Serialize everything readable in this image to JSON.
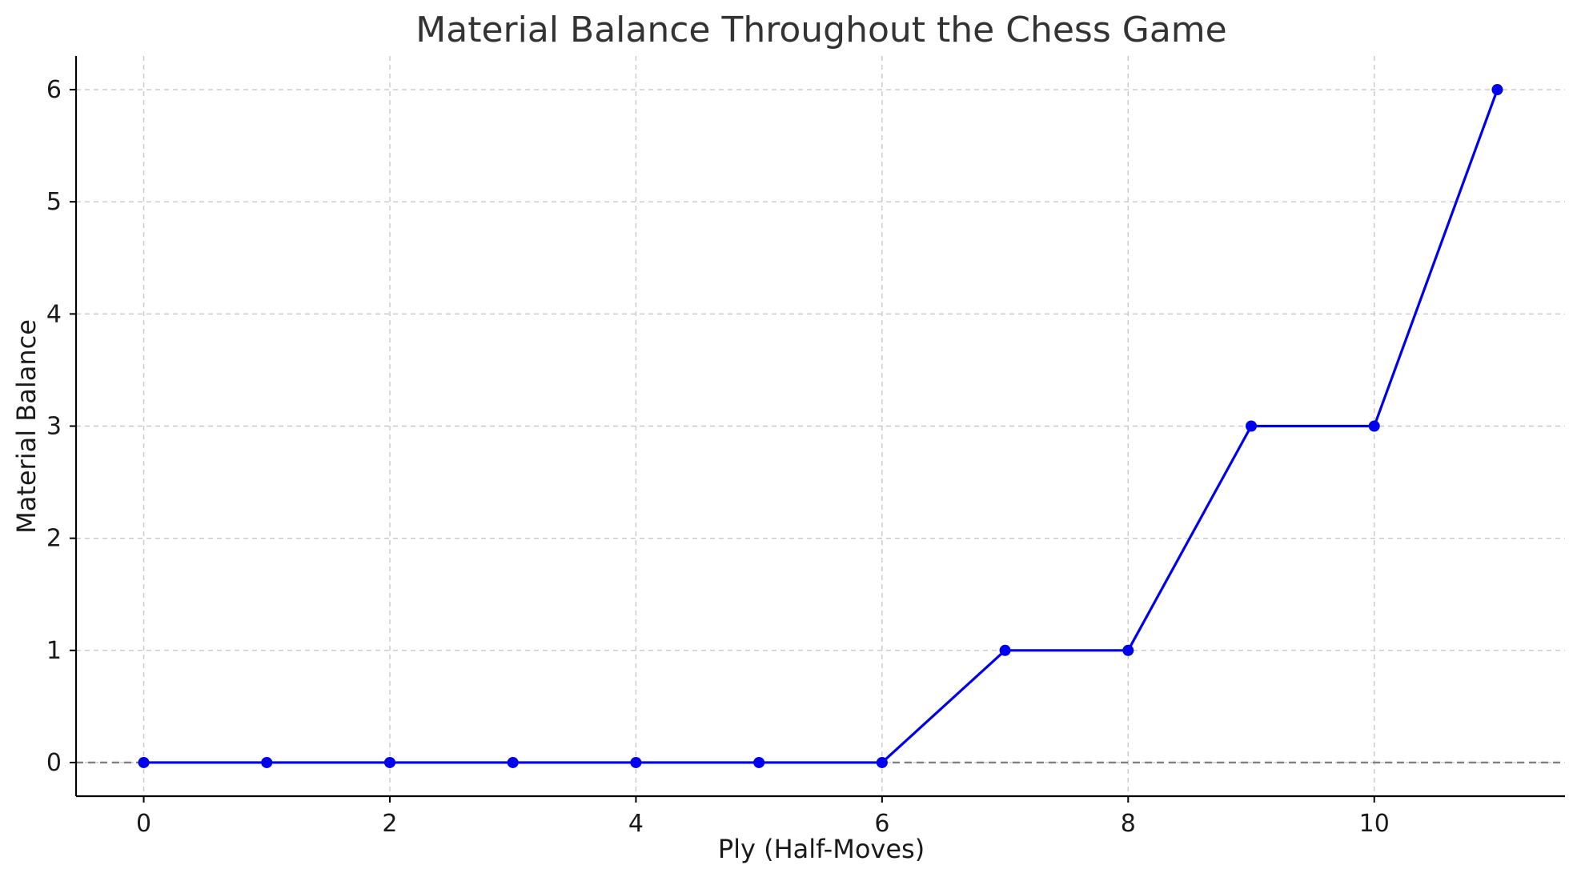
{
  "chart_data": {
    "type": "line",
    "title": "Material Balance Throughout the Chess Game",
    "xlabel": "Ply (Half-Moves)",
    "ylabel": "Material Balance",
    "xlim": [
      -0.55,
      11.55
    ],
    "ylim": [
      -0.3,
      6.3
    ],
    "xticks": [
      0,
      2,
      4,
      6,
      8,
      10
    ],
    "yticks": [
      0,
      1,
      2,
      3,
      4,
      5,
      6
    ],
    "grid": true,
    "reference_line_y": 0,
    "series": [
      {
        "x": [
          0,
          1,
          2,
          3,
          4,
          5,
          6,
          7,
          8,
          9,
          10,
          11
        ],
        "y": [
          0,
          0,
          0,
          0,
          0,
          0,
          0,
          1,
          1,
          3,
          3,
          6
        ],
        "color": "#0000ee",
        "marker": "circle"
      }
    ]
  }
}
